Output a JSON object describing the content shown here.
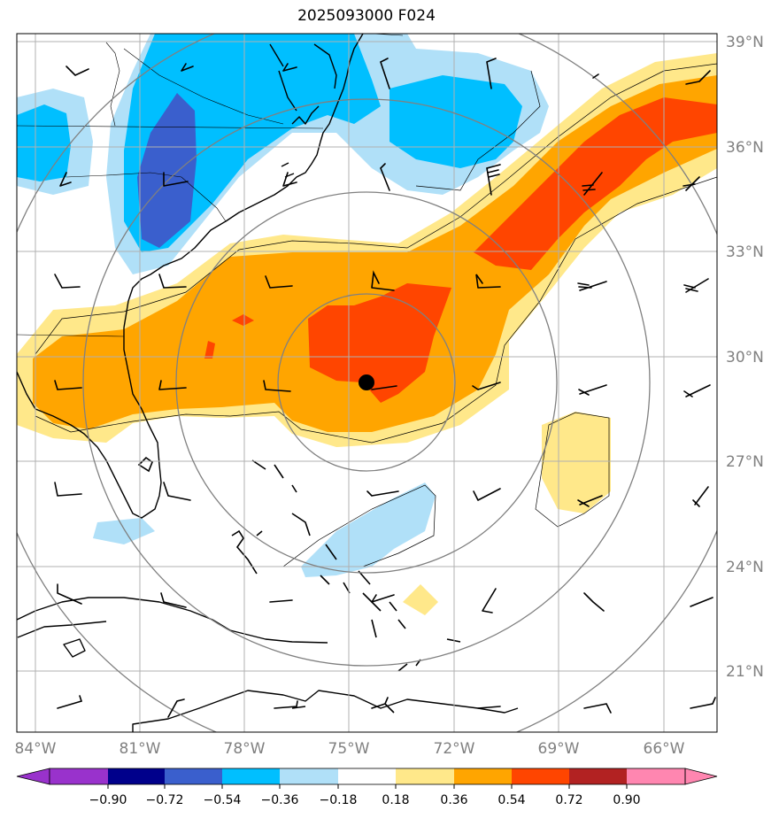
{
  "title": "2025093000 F024",
  "map": {
    "lat_labels": [
      "39°N",
      "36°N",
      "33°N",
      "30°N",
      "27°N",
      "24°N",
      "21°N"
    ],
    "lon_labels": [
      "84°W",
      "81°W",
      "78°W",
      "75°W",
      "72°W",
      "69°W",
      "66°W"
    ],
    "storm_center": {
      "lon": -74.7,
      "lat": 29.2
    }
  },
  "colorbar": {
    "tick_labels": [
      "−0.90",
      "−0.72",
      "−0.54",
      "−0.36",
      "−0.18",
      "0.18",
      "0.36",
      "0.54",
      "0.72",
      "0.90"
    ],
    "colors": [
      "#9932cc",
      "#00008b",
      "#3a5fcd",
      "#00bfff",
      "#b0e0f8",
      "#ffffff",
      "#ffe88a",
      "#ffa500",
      "#ff4500",
      "#b22222",
      "#ff86b0"
    ]
  },
  "colors": {
    "grid": "#b0b0b0",
    "range_rings": "#808080",
    "coast": "#000000",
    "tick_text": "#808080"
  }
}
